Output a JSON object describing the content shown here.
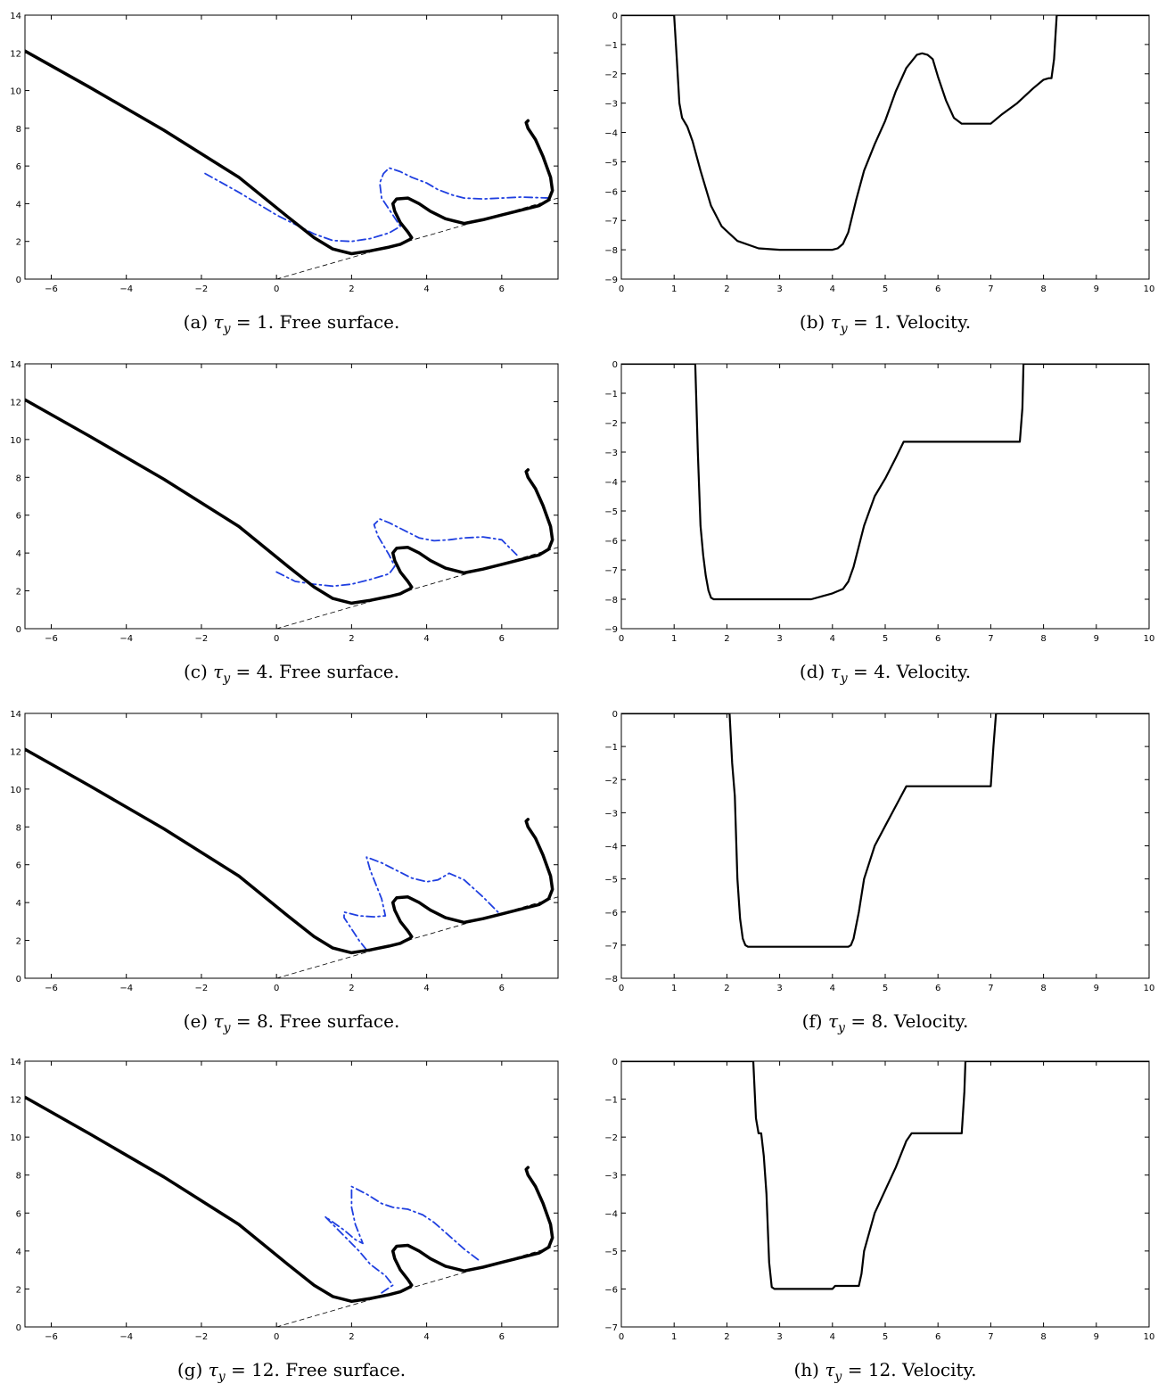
{
  "colors": {
    "solid": "#000000",
    "dashdot": "#1f3fe0",
    "incline": "#000000"
  },
  "chart_data": [
    {
      "type": "line",
      "caption": {
        "letter": "(a)",
        "tau_sub": "y",
        "value": "= 1.",
        "desc": "Free surface."
      },
      "xlim": [
        -6.7,
        7.5
      ],
      "ylim": [
        0,
        14
      ],
      "xticks": [
        -6,
        -4,
        -2,
        0,
        2,
        4,
        6
      ],
      "yticks": [
        0,
        2,
        4,
        6,
        8,
        10,
        12,
        14
      ],
      "series": [
        {
          "style": "solid",
          "x": [
            -6.7,
            -5,
            -3,
            -1,
            0.3,
            1,
            1.5,
            2,
            2.5,
            3,
            3.3,
            3.4,
            3.55,
            3.6,
            3.5,
            3.3,
            3.15,
            3.1,
            3.2,
            3.5,
            3.8,
            4.1,
            4.5,
            5,
            5.5,
            6,
            6.5,
            7,
            7.25,
            7.35,
            7.3,
            7.1,
            6.9,
            6.7,
            6.65,
            6.7
          ],
          "y": [
            12.1,
            10.2,
            7.9,
            5.4,
            3.3,
            2.2,
            1.6,
            1.35,
            1.5,
            1.7,
            1.85,
            1.95,
            2.1,
            2.2,
            2.5,
            3.0,
            3.6,
            4.0,
            4.25,
            4.3,
            4.0,
            3.6,
            3.2,
            2.95,
            3.15,
            3.4,
            3.65,
            3.9,
            4.2,
            4.7,
            5.4,
            6.5,
            7.4,
            8.0,
            8.3,
            8.4
          ]
        },
        {
          "style": "dashdot",
          "x": [
            -1.9,
            -1,
            0,
            1,
            1.5,
            2,
            2.5,
            3,
            3.3,
            3.1,
            2.8,
            2.75,
            2.85,
            3,
            3.3,
            3.6,
            4,
            4.3,
            4.7,
            5,
            5.5,
            6,
            6.5,
            7.3
          ],
          "y": [
            5.6,
            4.6,
            3.4,
            2.4,
            2.05,
            2.0,
            2.15,
            2.45,
            2.8,
            3.4,
            4.3,
            5.1,
            5.6,
            5.9,
            5.7,
            5.4,
            5.1,
            4.75,
            4.45,
            4.3,
            4.25,
            4.3,
            4.35,
            4.3
          ]
        },
        {
          "style": "incline",
          "x": [
            0,
            7.5
          ],
          "y": [
            0,
            4.3
          ]
        }
      ]
    },
    {
      "type": "line",
      "caption": {
        "letter": "(b)",
        "tau_sub": "y",
        "value": "= 1.",
        "desc": "Velocity."
      },
      "xlim": [
        0,
        10
      ],
      "ylim": [
        -9,
        0
      ],
      "xticks": [
        0,
        1,
        2,
        3,
        4,
        5,
        6,
        7,
        8,
        9,
        10
      ],
      "yticks": [
        -9,
        -8,
        -7,
        -6,
        -5,
        -4,
        -3,
        -2,
        -1,
        0
      ],
      "series": [
        {
          "style": "solid",
          "x": [
            0,
            1,
            1.05,
            1.1,
            1.15,
            1.25,
            1.35,
            1.5,
            1.7,
            1.9,
            2.2,
            2.6,
            3,
            3.5,
            4,
            4.1,
            4.2,
            4.3,
            4.45,
            4.6,
            4.8,
            5,
            5.2,
            5.4,
            5.6,
            5.7,
            5.8,
            5.9,
            6,
            6.15,
            6.3,
            6.45,
            6.6,
            7,
            7.2,
            7.5,
            7.8,
            8,
            8.1,
            8.15,
            8.2,
            8.25,
            10
          ],
          "y": [
            0,
            0,
            -1.5,
            -3,
            -3.5,
            -3.8,
            -4.3,
            -5.3,
            -6.5,
            -7.2,
            -7.7,
            -7.95,
            -8,
            -8,
            -8,
            -7.95,
            -7.8,
            -7.4,
            -6.3,
            -5.3,
            -4.4,
            -3.6,
            -2.6,
            -1.8,
            -1.35,
            -1.3,
            -1.35,
            -1.5,
            -2.1,
            -2.9,
            -3.5,
            -3.7,
            -3.7,
            -3.7,
            -3.4,
            -3.0,
            -2.5,
            -2.2,
            -2.15,
            -2.15,
            -1.5,
            0,
            0
          ]
        }
      ]
    },
    {
      "type": "line",
      "caption": {
        "letter": "(c)",
        "tau_sub": "y",
        "value": "= 4.",
        "desc": "Free surface."
      },
      "xlim": [
        -6.7,
        7.5
      ],
      "ylim": [
        0,
        14
      ],
      "xticks": [
        -6,
        -4,
        -2,
        0,
        2,
        4,
        6
      ],
      "yticks": [
        0,
        2,
        4,
        6,
        8,
        10,
        12,
        14
      ],
      "series": [
        {
          "style": "solid",
          "x": [
            -6.7,
            -5,
            -3,
            -1,
            0.3,
            1,
            1.5,
            2,
            2.5,
            3,
            3.3,
            3.4,
            3.55,
            3.6,
            3.5,
            3.3,
            3.15,
            3.1,
            3.2,
            3.5,
            3.8,
            4.1,
            4.5,
            5,
            5.5,
            6,
            6.5,
            7,
            7.25,
            7.35,
            7.3,
            7.1,
            6.9,
            6.7,
            6.65,
            6.7
          ],
          "y": [
            12.1,
            10.2,
            7.9,
            5.4,
            3.3,
            2.2,
            1.6,
            1.35,
            1.5,
            1.7,
            1.85,
            1.95,
            2.1,
            2.2,
            2.5,
            3.0,
            3.6,
            4.0,
            4.25,
            4.3,
            4.0,
            3.6,
            3.2,
            2.95,
            3.15,
            3.4,
            3.65,
            3.9,
            4.2,
            4.7,
            5.4,
            6.5,
            7.4,
            8.0,
            8.3,
            8.4
          ]
        },
        {
          "style": "dashdot",
          "x": [
            0,
            0.5,
            1,
            1.5,
            2,
            2.5,
            3,
            3.15,
            3.0,
            2.7,
            2.6,
            2.75,
            3,
            3.4,
            3.8,
            4.2,
            4.6,
            5,
            5.5,
            6,
            6.4
          ],
          "y": [
            3.0,
            2.5,
            2.35,
            2.25,
            2.35,
            2.6,
            2.9,
            3.3,
            3.9,
            4.9,
            5.5,
            5.8,
            5.6,
            5.2,
            4.8,
            4.65,
            4.7,
            4.8,
            4.85,
            4.7,
            3.9
          ]
        },
        {
          "style": "incline",
          "x": [
            0,
            7.5
          ],
          "y": [
            0,
            4.3
          ]
        }
      ]
    },
    {
      "type": "line",
      "caption": {
        "letter": "(d)",
        "tau_sub": "y",
        "value": "= 4.",
        "desc": "Velocity."
      },
      "xlim": [
        0,
        10
      ],
      "ylim": [
        -9,
        0
      ],
      "xticks": [
        0,
        1,
        2,
        3,
        4,
        5,
        6,
        7,
        8,
        9,
        10
      ],
      "yticks": [
        -9,
        -8,
        -7,
        -6,
        -5,
        -4,
        -3,
        -2,
        -1,
        0
      ],
      "series": [
        {
          "style": "solid",
          "x": [
            0,
            1.4,
            1.45,
            1.5,
            1.55,
            1.6,
            1.65,
            1.7,
            1.75,
            2,
            3,
            3.6,
            3.8,
            4,
            4.2,
            4.3,
            4.4,
            4.5,
            4.6,
            4.8,
            5,
            5.2,
            5.35,
            6,
            7,
            7.55,
            7.6,
            7.62,
            10
          ],
          "y": [
            0,
            0,
            -3,
            -5.5,
            -6.5,
            -7.2,
            -7.7,
            -7.95,
            -8,
            -8,
            -8,
            -8,
            -7.9,
            -7.8,
            -7.65,
            -7.4,
            -6.9,
            -6.2,
            -5.5,
            -4.5,
            -3.9,
            -3.2,
            -2.65,
            -2.65,
            -2.65,
            -2.65,
            -1.5,
            0,
            0
          ]
        }
      ]
    },
    {
      "type": "line",
      "caption": {
        "letter": "(e)",
        "tau_sub": "y",
        "value": "= 8.",
        "desc": "Free surface."
      },
      "xlim": [
        -6.7,
        7.5
      ],
      "ylim": [
        0,
        14
      ],
      "xticks": [
        -6,
        -4,
        -2,
        0,
        2,
        4,
        6
      ],
      "yticks": [
        0,
        2,
        4,
        6,
        8,
        10,
        12,
        14
      ],
      "series": [
        {
          "style": "solid",
          "x": [
            -6.7,
            -5,
            -3,
            -1,
            0.3,
            1,
            1.5,
            2,
            2.5,
            3,
            3.3,
            3.4,
            3.55,
            3.6,
            3.5,
            3.3,
            3.15,
            3.1,
            3.2,
            3.5,
            3.8,
            4.1,
            4.5,
            5,
            5.5,
            6,
            6.5,
            7,
            7.25,
            7.35,
            7.3,
            7.1,
            6.9,
            6.7,
            6.65,
            6.7
          ],
          "y": [
            12.1,
            10.2,
            7.9,
            5.4,
            3.3,
            2.2,
            1.6,
            1.35,
            1.5,
            1.7,
            1.85,
            1.95,
            2.1,
            2.2,
            2.5,
            3.0,
            3.6,
            4.0,
            4.25,
            4.3,
            4.0,
            3.6,
            3.2,
            2.95,
            3.15,
            3.4,
            3.65,
            3.9,
            4.2,
            4.7,
            5.4,
            6.5,
            7.4,
            8.0,
            8.3,
            8.4
          ]
        },
        {
          "style": "dashdot",
          "x": [
            2.4,
            2.2,
            2.0,
            1.8,
            1.8,
            2.2,
            2.6,
            2.9,
            2.8,
            2.5,
            2.4,
            2.8,
            3.2,
            3.6,
            4.0,
            4.3,
            4.6,
            5.0,
            5.5,
            5.9
          ],
          "y": [
            1.5,
            2.0,
            2.6,
            3.2,
            3.5,
            3.3,
            3.25,
            3.3,
            4.2,
            5.7,
            6.4,
            6.1,
            5.7,
            5.3,
            5.1,
            5.2,
            5.55,
            5.2,
            4.3,
            3.5
          ]
        },
        {
          "style": "incline",
          "x": [
            0,
            7.5
          ],
          "y": [
            0,
            4.3
          ]
        }
      ]
    },
    {
      "type": "line",
      "caption": {
        "letter": "(f)",
        "tau_sub": "y",
        "value": "= 8.",
        "desc": "Velocity."
      },
      "xlim": [
        0,
        10
      ],
      "ylim": [
        -8,
        0
      ],
      "xticks": [
        0,
        1,
        2,
        3,
        4,
        5,
        6,
        7,
        8,
        9,
        10
      ],
      "yticks": [
        -8,
        -7,
        -6,
        -5,
        -4,
        -3,
        -2,
        -1,
        0
      ],
      "series": [
        {
          "style": "solid",
          "x": [
            0,
            2.05,
            2.1,
            2.15,
            2.2,
            2.25,
            2.3,
            2.35,
            2.4,
            3,
            3.5,
            4,
            4.3,
            4.35,
            4.4,
            4.5,
            4.6,
            4.8,
            5,
            5.2,
            5.4,
            6,
            7,
            7.05,
            7.1,
            10
          ],
          "y": [
            0,
            0,
            -1.5,
            -2.5,
            -5,
            -6.2,
            -6.8,
            -7.0,
            -7.05,
            -7.05,
            -7.05,
            -7.05,
            -7.05,
            -7.0,
            -6.8,
            -6.0,
            -5.0,
            -4.0,
            -3.4,
            -2.8,
            -2.2,
            -2.2,
            -2.2,
            -1.0,
            0,
            0
          ]
        }
      ]
    },
    {
      "type": "line",
      "caption": {
        "letter": "(g)",
        "tau_sub": "y",
        "value": "= 12.",
        "desc": "Free surface."
      },
      "xlim": [
        -6.7,
        7.5
      ],
      "ylim": [
        0,
        14
      ],
      "xticks": [
        -6,
        -4,
        -2,
        0,
        2,
        4,
        6
      ],
      "yticks": [
        0,
        2,
        4,
        6,
        8,
        10,
        12,
        14
      ],
      "series": [
        {
          "style": "solid",
          "x": [
            -6.7,
            -5,
            -3,
            -1,
            0.3,
            1,
            1.5,
            2,
            2.5,
            3,
            3.3,
            3.4,
            3.55,
            3.6,
            3.5,
            3.3,
            3.15,
            3.1,
            3.2,
            3.5,
            3.8,
            4.1,
            4.5,
            5,
            5.5,
            6,
            6.5,
            7,
            7.25,
            7.35,
            7.3,
            7.1,
            6.9,
            6.7,
            6.65,
            6.7
          ],
          "y": [
            12.1,
            10.2,
            7.9,
            5.4,
            3.3,
            2.2,
            1.6,
            1.35,
            1.5,
            1.7,
            1.85,
            1.95,
            2.1,
            2.2,
            2.5,
            3.0,
            3.6,
            4.0,
            4.25,
            4.3,
            4.0,
            3.6,
            3.2,
            2.95,
            3.15,
            3.4,
            3.65,
            3.9,
            4.2,
            4.7,
            5.4,
            6.5,
            7.4,
            8.0,
            8.3,
            8.4
          ]
        },
        {
          "style": "dashdot",
          "x": [
            2.8,
            3.1,
            2.9,
            2.5,
            2.2,
            1.9,
            1.6,
            1.3,
            1.8,
            2.1,
            2.3,
            2.1,
            2.0,
            2.0,
            2.4,
            2.8,
            3.1,
            3.5,
            3.9,
            4.2,
            4.6,
            5.0,
            5.4
          ],
          "y": [
            1.8,
            2.2,
            2.7,
            3.3,
            4.0,
            4.6,
            5.2,
            5.8,
            5.1,
            4.6,
            4.4,
            5.4,
            6.3,
            7.4,
            7.0,
            6.5,
            6.3,
            6.2,
            5.9,
            5.5,
            4.8,
            4.1,
            3.5
          ]
        },
        {
          "style": "incline",
          "x": [
            0,
            7.5
          ],
          "y": [
            0,
            4.3
          ]
        }
      ]
    },
    {
      "type": "line",
      "caption": {
        "letter": "(h)",
        "tau_sub": "y",
        "value": "= 12.",
        "desc": "Velocity."
      },
      "xlim": [
        0,
        10
      ],
      "ylim": [
        -7,
        0
      ],
      "xticks": [
        0,
        1,
        2,
        3,
        4,
        5,
        6,
        7,
        8,
        9,
        10
      ],
      "yticks": [
        -7,
        -6,
        -5,
        -4,
        -3,
        -2,
        -1,
        0
      ],
      "series": [
        {
          "style": "solid",
          "x": [
            0,
            2.5,
            2.55,
            2.6,
            2.65,
            2.7,
            2.75,
            2.8,
            2.85,
            2.9,
            3,
            3.5,
            4,
            4.05,
            4.1,
            4.5,
            4.55,
            4.6,
            4.8,
            5,
            5.2,
            5.4,
            5.5,
            6,
            6.45,
            6.5,
            6.52,
            10
          ],
          "y": [
            0,
            0,
            -1.5,
            -1.9,
            -1.9,
            -2.5,
            -3.5,
            -5.3,
            -5.95,
            -6.0,
            -6.0,
            -6.0,
            -6.0,
            -5.92,
            -5.92,
            -5.92,
            -5.6,
            -5.0,
            -4.0,
            -3.4,
            -2.8,
            -2.1,
            -1.9,
            -1.9,
            -1.9,
            -0.8,
            0,
            0
          ]
        }
      ]
    }
  ]
}
